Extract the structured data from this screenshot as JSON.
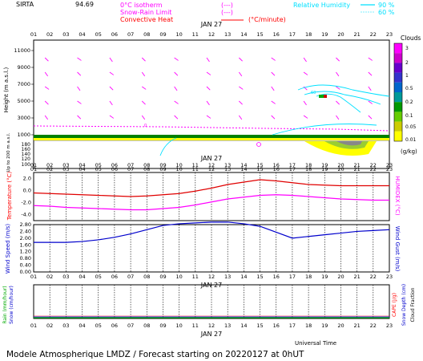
{
  "header": {
    "station": "SIRTA",
    "coords": "94.69",
    "legend": [
      {
        "label": "0°C isotherm",
        "key": "(---)",
        "color": "#ff00ff"
      },
      {
        "label": "Snow-Rain Limit",
        "key": "(---)",
        "color": "#ff00ff"
      },
      {
        "label": "Convective Heat",
        "key": "(°C/minute)",
        "color": "#ff0000"
      },
      {
        "label": "Relative Humidity",
        "key1": "90 %",
        "key2": "60 %",
        "color": "#00e0ff"
      }
    ]
  },
  "footer": {
    "universal_time": "Universal Time",
    "title": "Modele Atmospherique LMDZ / Forecast starting on 20220127 at 0hUT"
  },
  "chart_data": [
    {
      "type": "heatmap",
      "panel": "upper-air",
      "date": "JAN 27",
      "x": [
        "01",
        "02",
        "03",
        "04",
        "05",
        "06",
        "07",
        "08",
        "09",
        "10",
        "11",
        "12",
        "13",
        "14",
        "15",
        "16",
        "17",
        "18",
        "19",
        "20",
        "21",
        "22",
        "23"
      ],
      "ylabel": "Height (m a.s.l.)",
      "y_ticks": [
        "11000",
        "9000",
        "7000",
        "5000",
        "3000",
        "1000"
      ],
      "ylabel_low": "Up to 200 m a.s.l.",
      "y_ticks_low": [
        "180",
        "160",
        "140",
        "120",
        "100"
      ],
      "colorbar": {
        "title": "Clouds",
        "unit": "(g/kg)",
        "ticks": [
          "3",
          "2",
          "1",
          "0.5",
          "0.2",
          "0.1",
          "0.05",
          "0.01"
        ]
      },
      "isolines": [
        "60",
        "0"
      ]
    },
    {
      "type": "line",
      "panel": "temperature",
      "date": "JAN 27",
      "ylabel": "Temperature (°C)",
      "y2label": "HUMIDEX (°C)",
      "y_ticks": [
        "2.0",
        "0.0",
        "-2.0",
        "-4.0"
      ],
      "ylim": [
        -5.0,
        3.0
      ],
      "series": [
        {
          "name": "Temperature",
          "color": "#e00000",
          "values": [
            -0.4,
            -0.5,
            -0.6,
            -0.7,
            -0.8,
            -0.9,
            -1.0,
            -0.9,
            -0.7,
            -0.5,
            -0.1,
            0.4,
            1.0,
            1.4,
            1.8,
            1.6,
            1.3,
            1.0,
            0.9,
            0.8,
            0.8,
            0.8,
            0.8
          ]
        },
        {
          "name": "Humidex",
          "color": "#ff00ff",
          "values": [
            -2.5,
            -2.6,
            -2.8,
            -2.9,
            -3.0,
            -3.1,
            -3.2,
            -3.2,
            -3.0,
            -2.8,
            -2.4,
            -1.9,
            -1.4,
            -1.1,
            -0.8,
            -0.7,
            -0.8,
            -1.0,
            -1.2,
            -1.4,
            -1.5,
            -1.6,
            -1.6
          ]
        }
      ]
    },
    {
      "type": "line",
      "panel": "wind",
      "date": "JAN 27",
      "ylabel": "Wind Speed (m/s)",
      "y2label": "Wind Gust (m/s)",
      "y_ticks": [
        "2.80",
        "2.40",
        "2.00",
        "1.60",
        "1.20",
        "0.80",
        "0.40",
        "0.00"
      ],
      "ylim": [
        0.0,
        2.8
      ],
      "series": [
        {
          "name": "Wind Speed",
          "color": "#0000cc",
          "values": [
            1.75,
            1.75,
            1.75,
            1.8,
            1.9,
            2.05,
            2.25,
            2.5,
            2.75,
            2.85,
            2.9,
            2.95,
            2.95,
            2.85,
            2.7,
            2.35,
            2.0,
            2.1,
            2.2,
            2.3,
            2.4,
            2.45,
            2.5
          ]
        }
      ]
    },
    {
      "type": "line",
      "panel": "precipitation",
      "date": "JAN 27",
      "ylabel": "Rain (mm/hour)",
      "ylabel2": "Snow (cm/hour)",
      "y2label": "CAPE (J/g)",
      "y2label2": "Snow Depth (cm)",
      "y2label3": "Cloud Fraction",
      "series": [
        {
          "name": "Rain",
          "color": "#00cc00",
          "values": [
            0,
            0,
            0,
            0,
            0,
            0,
            0,
            0,
            0,
            0,
            0,
            0,
            0,
            0,
            0,
            0,
            0,
            0,
            0,
            0,
            0,
            0,
            0
          ]
        }
      ]
    }
  ]
}
